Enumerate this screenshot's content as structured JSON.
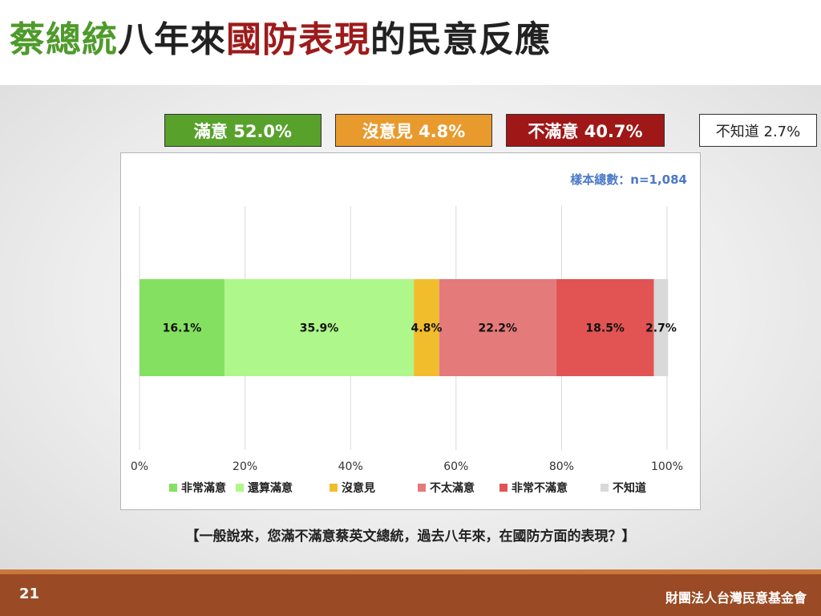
{
  "title": {
    "part1": "蔡總統",
    "part2": "八年來",
    "part3": "國防表現",
    "part4": "的民意反應"
  },
  "summary": {
    "satisfied": "滿意 52.0%",
    "neutral": "沒意見 4.8%",
    "dissatisfied": "不滿意 40.7%",
    "dont_know": "不知道 2.7%"
  },
  "colors": {
    "very_satisfied": "#84e060",
    "somewhat_satisfied": "#aef78a",
    "no_opinion": "#f2bd2c",
    "not_very_satisfied": "#e47a7a",
    "very_dissatisfied": "#e25454",
    "dont_know": "#d9d9d9"
  },
  "chart_data": {
    "type": "bar",
    "orientation": "horizontal-stacked",
    "sample_note": "樣本總數：n=1,084",
    "series": [
      {
        "name": "非常滿意",
        "value": 16.1,
        "label": "16.1%",
        "color": "#84e060"
      },
      {
        "name": "還算滿意",
        "value": 35.9,
        "label": "35.9%",
        "color": "#aef78a"
      },
      {
        "name": "沒意見",
        "value": 4.8,
        "label": "4.8%",
        "color": "#f2bd2c"
      },
      {
        "name": "不太滿意",
        "value": 22.2,
        "label": "22.2%",
        "color": "#e47a7a"
      },
      {
        "name": "非常不滿意",
        "value": 18.5,
        "label": "18.5%",
        "color": "#e25454"
      },
      {
        "name": "不知道",
        "value": 2.7,
        "label": "2.7%",
        "color": "#d9d9d9"
      }
    ],
    "x_ticks": [
      "0%",
      "20%",
      "40%",
      "60%",
      "80%",
      "100%"
    ],
    "xlim": [
      0,
      100
    ],
    "grid": true,
    "legend_position": "bottom"
  },
  "question": "【一般說來，您滿不滿意蔡英文總統，過去八年來，在國防方面的表現？】",
  "footer": {
    "page_number": "21",
    "organization": "財團法人台灣民意基金會"
  }
}
